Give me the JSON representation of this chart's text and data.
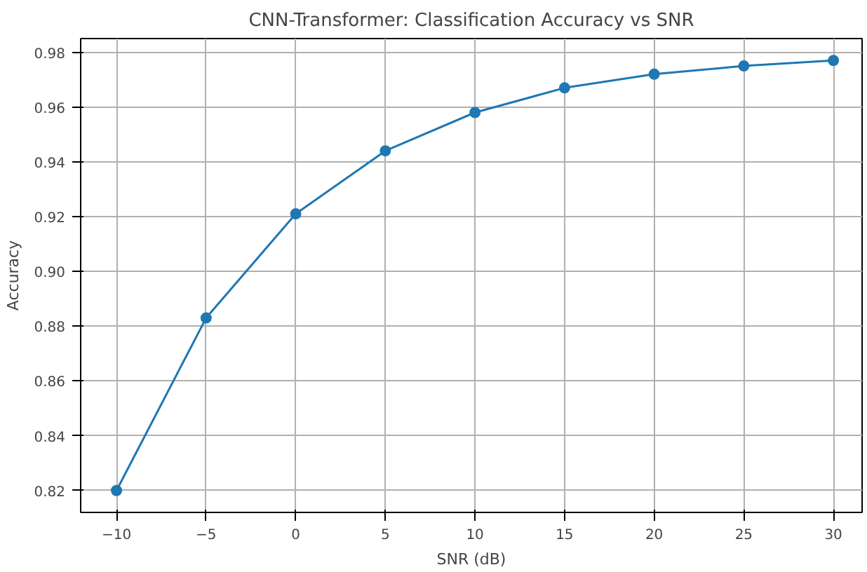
{
  "chart_data": {
    "type": "line",
    "title": "CNN-Transformer: Classification Accuracy vs SNR",
    "xlabel": "SNR (dB)",
    "ylabel": "Accuracy",
    "x": [
      -10,
      -5,
      0,
      5,
      10,
      15,
      20,
      25,
      30
    ],
    "series": [
      {
        "color": "#1f77b4",
        "values": [
          0.82,
          0.883,
          0.921,
          0.944,
          0.958,
          0.967,
          0.972,
          0.975,
          0.977
        ]
      }
    ],
    "xlim": [
      -12,
      31.6
    ],
    "ylim": [
      0.812,
      0.985
    ],
    "xticks": [
      {
        "value": -10,
        "label": "−10"
      },
      {
        "value": -5,
        "label": "−5"
      },
      0,
      5,
      10,
      15,
      20,
      25,
      30
    ],
    "yticks": [
      {
        "value": 0.82,
        "label": "0.82"
      },
      {
        "value": 0.84,
        "label": "0.84"
      },
      {
        "value": 0.86,
        "label": "0.86"
      },
      {
        "value": 0.88,
        "label": "0.88"
      },
      {
        "value": 0.9,
        "label": "0.90"
      },
      {
        "value": 0.92,
        "label": "0.92"
      },
      {
        "value": 0.94,
        "label": "0.94"
      },
      {
        "value": 0.96,
        "label": "0.96"
      },
      {
        "value": 0.98,
        "label": "0.98"
      }
    ],
    "grid": true,
    "marker": "circle",
    "line_style": "solid"
  }
}
